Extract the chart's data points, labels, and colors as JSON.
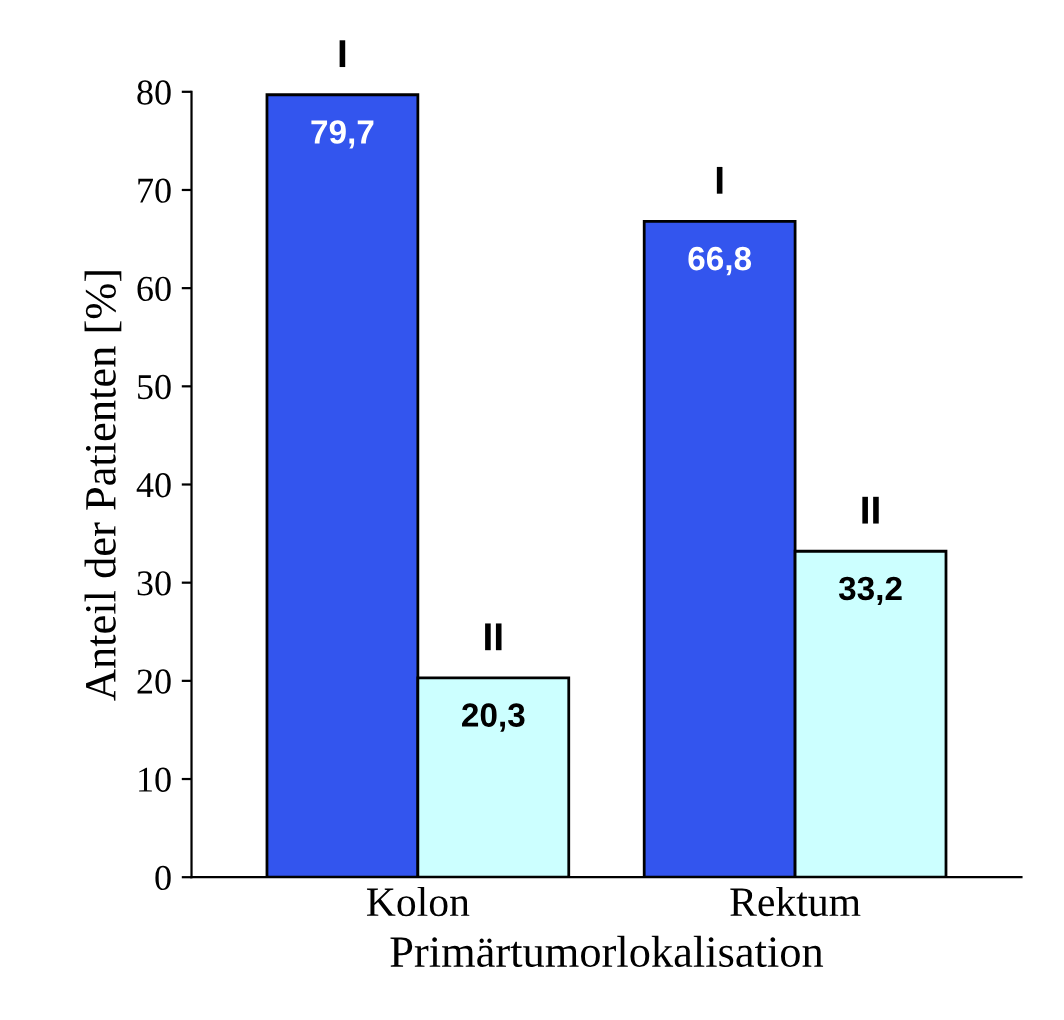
{
  "chart_data": {
    "type": "bar",
    "xlabel": "Primärtumorlokalisation",
    "ylabel": "Anteil der Patienten [%]",
    "categories": [
      "Kolon",
      "Rektum"
    ],
    "series": [
      {
        "name": "I",
        "color": "#3355ee",
        "values": [
          79.7,
          66.8
        ],
        "value_labels": [
          "79,7",
          "66,8"
        ]
      },
      {
        "name": "II",
        "color": "#ccffff",
        "values": [
          20.3,
          33.2
        ],
        "value_labels": [
          "20,3",
          "33,2"
        ]
      }
    ],
    "ylim": [
      0,
      80
    ],
    "yticks": [
      0,
      10,
      20,
      30,
      40,
      50,
      60,
      70,
      80
    ],
    "grid": false,
    "legend": false
  }
}
